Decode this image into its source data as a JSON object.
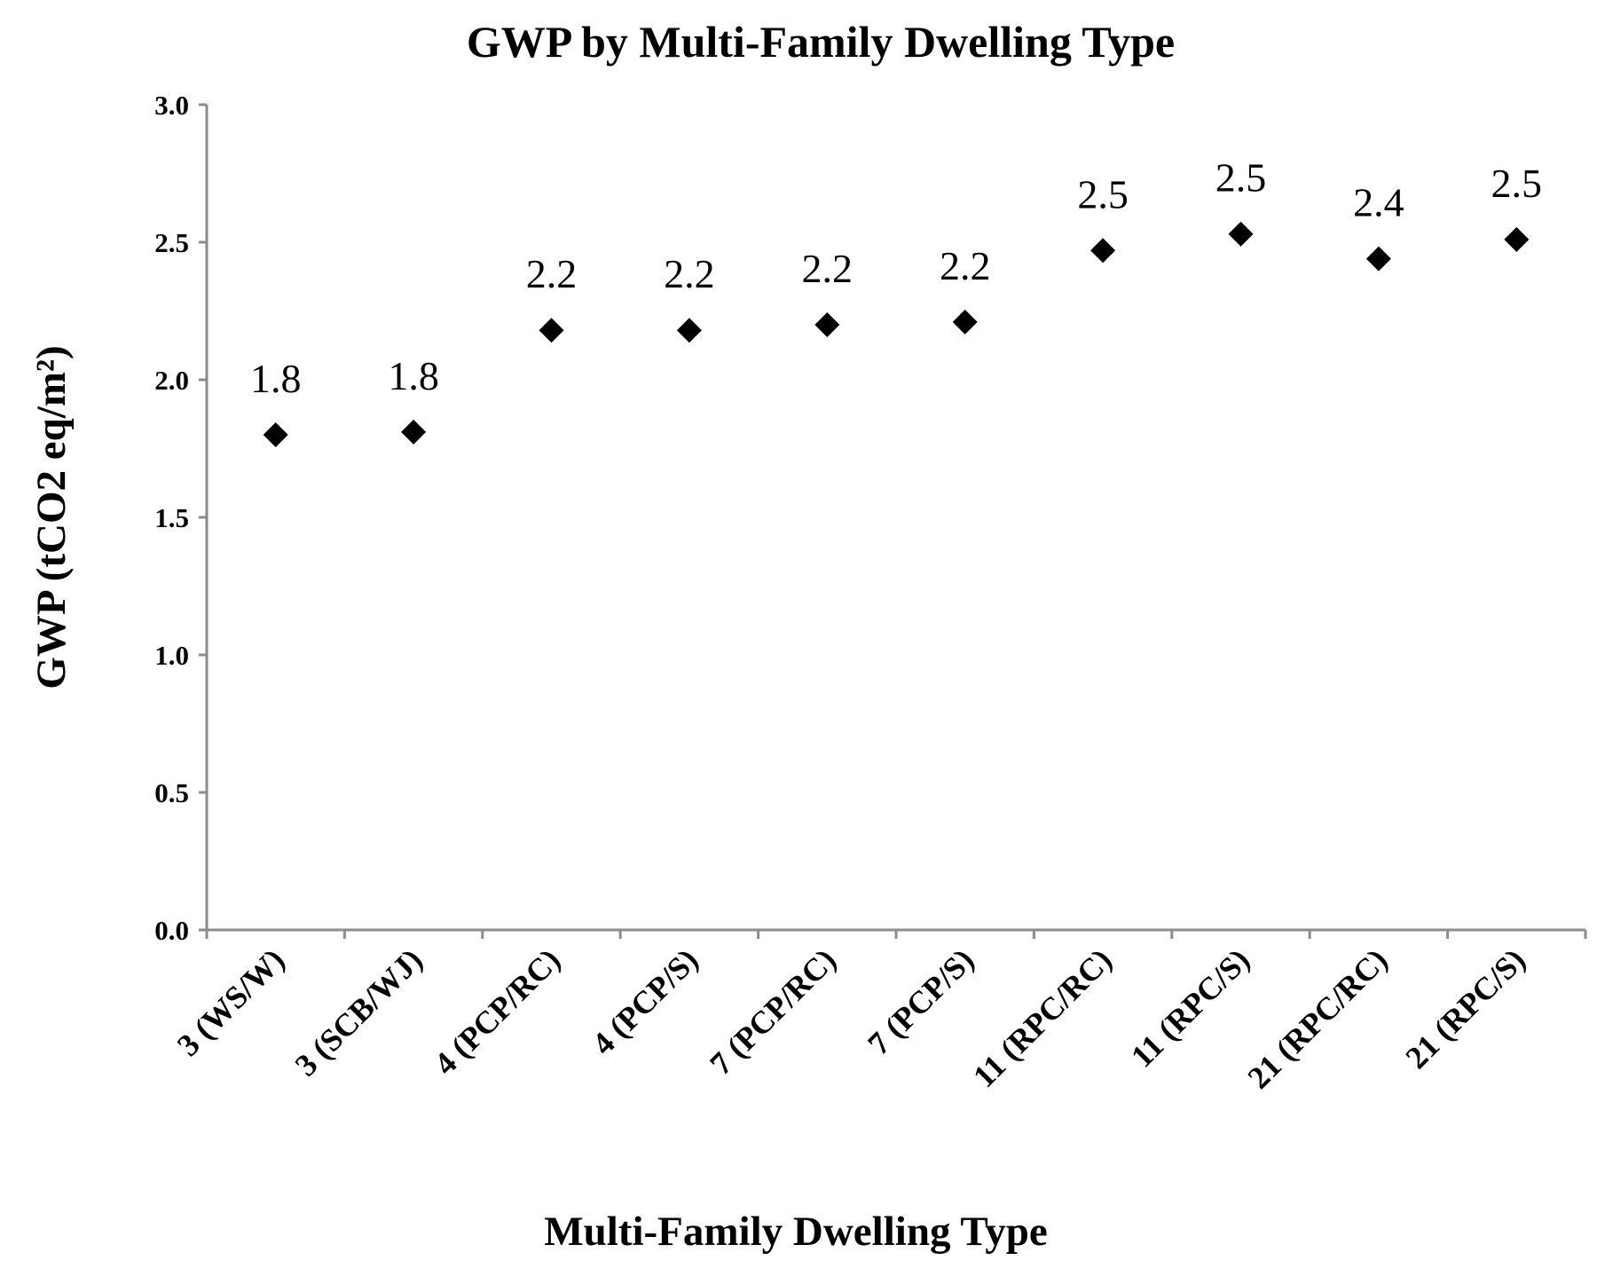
{
  "chart_data": {
    "type": "scatter",
    "title": "GWP by Multi-Family Dwelling Type",
    "xlabel": "Multi-Family Dwelling Type",
    "ylabel": "GWP (tCO2  eq/m²)",
    "ylim": [
      0,
      3
    ],
    "yticks": [
      "0.0",
      "0.5",
      "1.0",
      "1.5",
      "2.0",
      "2.5",
      "3.0"
    ],
    "ytick_values": [
      0,
      0.5,
      1.0,
      1.5,
      2.0,
      2.5,
      3.0
    ],
    "categories": [
      "3 (WS/W)",
      "3 (SCB/WJ)",
      "4 (PCP/RC)",
      "4 (PCP/S)",
      "7 (PCP/RC)",
      "7 (PCP/S)",
      "11 (RPC/RC)",
      "11 (RPC/S)",
      "21 (RPC/RC)",
      "21 (RPC/S)"
    ],
    "values": [
      1.8,
      1.81,
      2.18,
      2.18,
      2.2,
      2.21,
      2.47,
      2.53,
      2.44,
      2.51
    ],
    "data_labels": [
      "1.8",
      "1.8",
      "2.2",
      "2.2",
      "2.2",
      "2.2",
      "2.5",
      "2.5",
      "2.4",
      "2.5"
    ],
    "marker": "diamond",
    "marker_color": "#000000",
    "grid": false,
    "legend": "none"
  }
}
